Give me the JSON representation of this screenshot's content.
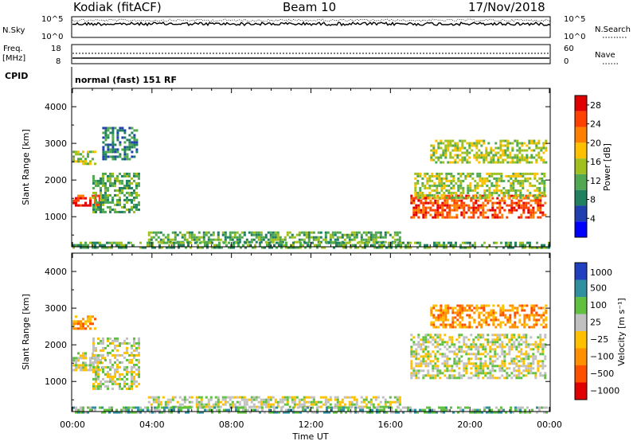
{
  "header": {
    "station": "Kodiak (fitACF)",
    "beam": "Beam 10",
    "date": "17/Nov/2018"
  },
  "noise_panel": {
    "left_label": "N.Sky",
    "left_ticks": [
      "10^5",
      "10^0"
    ],
    "right_ticks": [
      "10^5",
      "10^0"
    ],
    "right_label": "N.Search"
  },
  "freq_panel": {
    "left_label_line1": "Freq.",
    "left_label_line2": "[MHz]",
    "left_ticks": [
      "18",
      "8"
    ],
    "right_ticks": [
      "60",
      "0"
    ],
    "right_label": "Nave",
    "cpid_label": "CPID",
    "cpid_value": "normal (fast) 151 RF"
  },
  "chart_data": [
    {
      "type": "heatmap",
      "name": "power",
      "ylabel": "Slant Range [km]",
      "xlabel": "",
      "x_ticks": [
        "00:00",
        "04:00",
        "08:00",
        "12:00",
        "16:00",
        "20:00",
        "00:00"
      ],
      "xlim_hours": [
        0,
        24
      ],
      "y_ticks": [
        1000,
        2000,
        3000,
        4000
      ],
      "ylim": [
        180,
        4500
      ],
      "colorbar": {
        "label": "Power [dB]",
        "ticks": [
          4,
          8,
          12,
          16,
          20,
          24,
          28
        ],
        "range": [
          0,
          30
        ]
      },
      "colors": [
        "#0000ff",
        "#2040b0",
        "#208060",
        "#50a850",
        "#a0c020",
        "#ffc000",
        "#ff8000",
        "#ff4000",
        "#e00000"
      ],
      "regions": [
        {
          "t0": 0.0,
          "t1": 1.6,
          "r0": 1300,
          "r1": 1600,
          "level": 7
        },
        {
          "t0": 0.0,
          "t1": 1.2,
          "r0": 2450,
          "r1": 2800,
          "level": 4
        },
        {
          "t0": 1.0,
          "t1": 3.3,
          "r0": 1100,
          "r1": 2200,
          "level": 3
        },
        {
          "t0": 1.5,
          "t1": 3.3,
          "r0": 2600,
          "r1": 3450,
          "level": 2
        },
        {
          "t0": 3.8,
          "t1": 16.5,
          "r0": 300,
          "r1": 600,
          "level": 3
        },
        {
          "t0": 17.0,
          "t1": 23.8,
          "r0": 1000,
          "r1": 1600,
          "level": 7
        },
        {
          "t0": 17.2,
          "t1": 23.8,
          "r0": 1500,
          "r1": 2200,
          "level": 4
        },
        {
          "t0": 18.0,
          "t1": 23.8,
          "r0": 2500,
          "r1": 3100,
          "level": 4
        },
        {
          "t0": 0.0,
          "t1": 24.0,
          "r0": 180,
          "r1": 320,
          "level": 3
        }
      ]
    },
    {
      "type": "heatmap",
      "name": "velocity",
      "ylabel": "Slant Range [km]",
      "xlabel": "Time UT",
      "x_ticks": [
        "00:00",
        "04:00",
        "08:00",
        "12:00",
        "16:00",
        "20:00",
        "00:00"
      ],
      "xlim_hours": [
        0,
        24
      ],
      "y_ticks": [
        1000,
        2000,
        3000,
        4000
      ],
      "ylim": [
        180,
        4500
      ],
      "colorbar": {
        "label": "Velocity [m s⁻¹]",
        "ticks": [
          "1000",
          "500",
          "100",
          "25",
          "−25",
          "−100",
          "−500",
          "−1000"
        ]
      },
      "colors": [
        "#2040c0",
        "#3090a0",
        "#60c040",
        "#c0c0c0",
        "#ffc000",
        "#ff9000",
        "#ff5000",
        "#e00000"
      ],
      "regions": [
        {
          "t0": 0.0,
          "t1": 1.6,
          "r0": 1300,
          "r1": 1800,
          "level": 3
        },
        {
          "t0": 0.0,
          "t1": 1.2,
          "r0": 2450,
          "r1": 2800,
          "level": 5
        },
        {
          "t0": 1.0,
          "t1": 3.3,
          "r0": 800,
          "r1": 2200,
          "level": 3
        },
        {
          "t0": 3.8,
          "t1": 16.5,
          "r0": 300,
          "r1": 600,
          "level": 3
        },
        {
          "t0": 17.0,
          "t1": 23.8,
          "r0": 1100,
          "r1": 2300,
          "level": 3
        },
        {
          "t0": 18.0,
          "t1": 23.8,
          "r0": 2500,
          "r1": 3100,
          "level": 5
        },
        {
          "t0": 0.0,
          "t1": 24.0,
          "r0": 180,
          "r1": 320,
          "level": 2
        }
      ]
    }
  ]
}
